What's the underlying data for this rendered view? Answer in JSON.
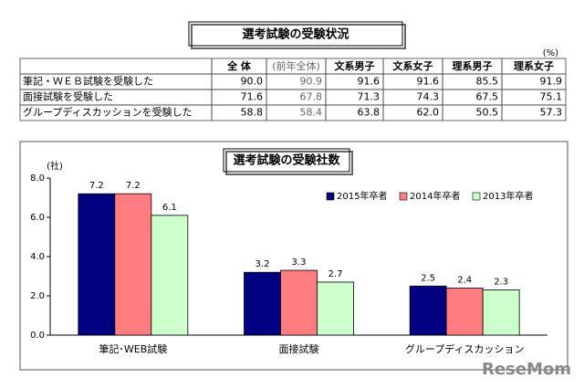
{
  "table": {
    "title": "選考試験の受験状況",
    "unit": "(%)",
    "header": [
      "全 体",
      "(前年全体)",
      "文系男子",
      "文系女子",
      "理系男子",
      "理系女子"
    ],
    "rows": [
      [
        "筆記・ＷＥＢ試験を受験した",
        "90.0",
        "90.9",
        "91.6",
        "91.6",
        "85.5",
        "91.9"
      ],
      [
        "面接試験を受験した",
        "71.6",
        "67.8",
        "71.3",
        "74.3",
        "67.5",
        "75.1"
      ],
      [
        "グループディスカッションを受験した",
        "58.8",
        "58.4",
        "63.8",
        "62.0",
        "50.5",
        "57.3"
      ]
    ]
  },
  "chart_data": {
    "type": "bar",
    "title": "選考試験の受験社数",
    "y_label": "(社)",
    "categories": [
      "筆記･WEB試験",
      "面接試験",
      "グループディスカッション"
    ],
    "series": [
      {
        "name": "2015年卒者",
        "color": "#000080",
        "values": [
          7.2,
          3.2,
          2.5
        ]
      },
      {
        "name": "2014年卒者",
        "color": "#ff7c80",
        "values": [
          7.2,
          3.3,
          2.4
        ]
      },
      {
        "name": "2013年卒者",
        "color": "#ccffcc",
        "values": [
          6.1,
          2.7,
          2.3
        ]
      }
    ],
    "ylim": [
      0,
      8
    ],
    "yticks": [
      {
        "value": 0,
        "label": "0.0"
      },
      {
        "value": 2,
        "label": "2.0"
      },
      {
        "value": 4,
        "label": "4.0"
      },
      {
        "value": 6,
        "label": "6.0"
      },
      {
        "value": 8,
        "label": "8.0"
      }
    ],
    "legend": "top-right"
  },
  "watermark": "ReseMom"
}
